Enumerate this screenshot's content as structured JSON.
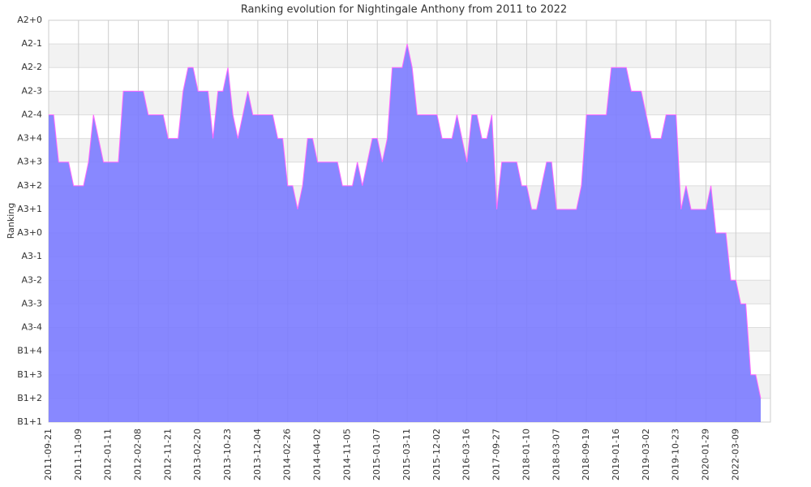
{
  "chart_data": {
    "type": "area",
    "title": "Ranking evolution for Nightingale Anthony from 2011 to 2022",
    "y_label": "Ranking",
    "categories": [
      "2011-09-21",
      null,
      null,
      null,
      null,
      null,
      "2011-11-09",
      null,
      null,
      null,
      null,
      null,
      "2012-01-11",
      null,
      null,
      null,
      null,
      null,
      "2012-02-08",
      null,
      null,
      null,
      null,
      null,
      "2012-11-21",
      null,
      null,
      null,
      null,
      null,
      "2013-02-20",
      null,
      null,
      null,
      null,
      null,
      "2013-10-23",
      null,
      null,
      null,
      null,
      null,
      "2013-12-04",
      null,
      null,
      null,
      null,
      null,
      "2014-02-26",
      null,
      null,
      null,
      null,
      null,
      "2014-04-02",
      null,
      null,
      null,
      null,
      null,
      "2014-11-05",
      null,
      null,
      null,
      null,
      null,
      "2015-01-07",
      null,
      null,
      null,
      null,
      null,
      "2015-03-11",
      null,
      null,
      null,
      null,
      null,
      "2015-12-02",
      null,
      null,
      null,
      null,
      null,
      "2016-03-16",
      null,
      null,
      null,
      null,
      null,
      "2017-09-27",
      null,
      null,
      null,
      null,
      null,
      "2018-01-10",
      null,
      null,
      null,
      null,
      null,
      "2018-03-07",
      null,
      null,
      null,
      null,
      null,
      "2018-09-19",
      null,
      null,
      null,
      null,
      null,
      "2019-01-16",
      null,
      null,
      null,
      null,
      null,
      "2019-03-02",
      null,
      null,
      null,
      null,
      null,
      "2019-10-23",
      null,
      null,
      null,
      null,
      null,
      "2020-01-29",
      null,
      null,
      null,
      null,
      null,
      "2022-03-09",
      null,
      null,
      null,
      null,
      null
    ],
    "series": [
      {
        "color": "#7b7bff",
        "line_color": "#ff66ff",
        "values": [
          13,
          13,
          11,
          11,
          11,
          10,
          10,
          10,
          11,
          13,
          12,
          11,
          11,
          11,
          11,
          14,
          14,
          14,
          14,
          14,
          13,
          13,
          13,
          13,
          12,
          12,
          12,
          14,
          15,
          15,
          14,
          14,
          14,
          12,
          14,
          14,
          15,
          13,
          12,
          13,
          14,
          13,
          13,
          13,
          13,
          13,
          12,
          12,
          10,
          10,
          9,
          10,
          12,
          12,
          11,
          11,
          11,
          11,
          11,
          10,
          10,
          10,
          11,
          10,
          11,
          12,
          12,
          11,
          12,
          15,
          15,
          15,
          16,
          15,
          13,
          13,
          13,
          13,
          13,
          12,
          12,
          12,
          13,
          12,
          11,
          13,
          13,
          12,
          12,
          13,
          9,
          11,
          11,
          11,
          11,
          10,
          10,
          9,
          9,
          10,
          11,
          11,
          9,
          9,
          9,
          9,
          9,
          10,
          13,
          13,
          13,
          13,
          13,
          15,
          15,
          15,
          15,
          14,
          14,
          14,
          13,
          12,
          12,
          12,
          13,
          13,
          13,
          9,
          10,
          9,
          9,
          9,
          9,
          10,
          8,
          8,
          8,
          6,
          6,
          5,
          5,
          2,
          2,
          1
        ]
      }
    ],
    "ylim": [
      0,
      17
    ],
    "yticks": [
      {
        "value": 0,
        "label": "B1+1"
      },
      {
        "value": 1,
        "label": "B1+2"
      },
      {
        "value": 2,
        "label": "B1+3"
      },
      {
        "value": 3,
        "label": "B1+4"
      },
      {
        "value": 4,
        "label": "A3-4"
      },
      {
        "value": 5,
        "label": "A3-3"
      },
      {
        "value": 6,
        "label": "A3-2"
      },
      {
        "value": 7,
        "label": "A3-1"
      },
      {
        "value": 8,
        "label": "A3+0"
      },
      {
        "value": 9,
        "label": "A3+1"
      },
      {
        "value": 10,
        "label": "A3+2"
      },
      {
        "value": 11,
        "label": "A3+3"
      },
      {
        "value": 12,
        "label": "A3+4"
      },
      {
        "value": 13,
        "label": "A2-4"
      },
      {
        "value": 14,
        "label": "A2-3"
      },
      {
        "value": 15,
        "label": "A2-2"
      },
      {
        "value": 16,
        "label": "A2-1"
      },
      {
        "value": 17,
        "label": "A2+0"
      }
    ],
    "grid": true
  }
}
